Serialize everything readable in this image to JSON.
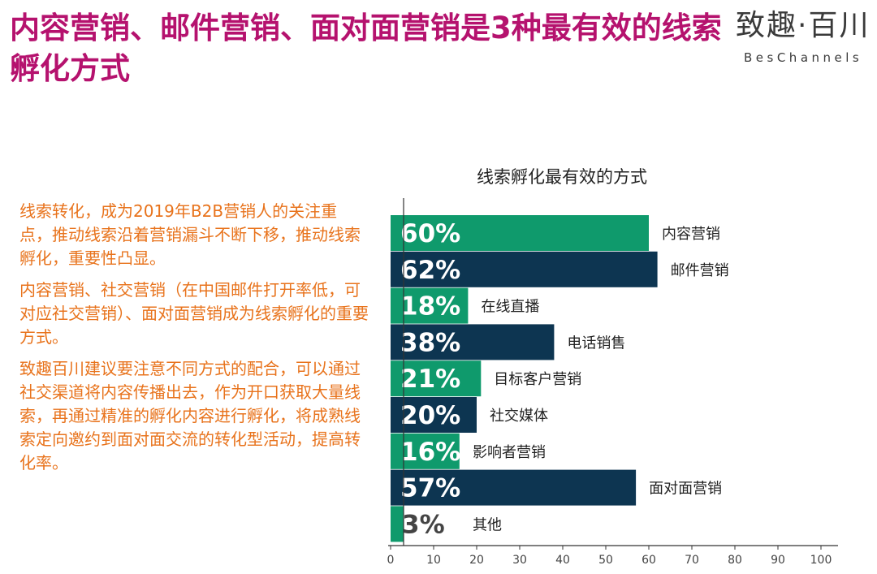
{
  "header": {
    "title": "内容营销、邮件营销、面对面营销是3种最有效的线索孵化方式",
    "logo_cn": "致趣·百川",
    "logo_en": "BesChannels"
  },
  "left_text": {
    "paragraphs": [
      "线索转化，成为2019年B2B营销人的关注重点，推动线索沿着营销漏斗不断下移，推动线索孵化，重要性凸显。",
      "内容营销、社交营销（在中国邮件打开率低，可对应社交营销）、面对面营销成为线索孵化的重要方式。",
      "致趣百川建议要注意不同方式的配合，可以通过社交渠道将内容传播出去，作为开口获取大量线索，再通过精准的孵化内容进行孵化，将成熟线索定向邀约到面对面交流的转化型活动，提高转化率。"
    ]
  },
  "chart_data": {
    "type": "bar",
    "orientation": "horizontal",
    "title": "线索孵化最有效的方式",
    "categories": [
      "内容营销",
      "邮件营销",
      "在线直播",
      "电话销售",
      "目标客户营销",
      "社交媒体",
      "影响者营销",
      "面对面营销",
      "其他"
    ],
    "values": [
      60,
      62,
      18,
      38,
      21,
      20,
      16,
      57,
      3
    ],
    "value_labels": [
      "60%",
      "62%",
      "18%",
      "38%",
      "21%",
      "20%",
      "16%",
      "57%",
      "3%"
    ],
    "bar_colors": [
      "#0f9a6c",
      "#0d3551",
      "#0f9a6c",
      "#0d3551",
      "#0f9a6c",
      "#0d3551",
      "#0f9a6c",
      "#0d3551",
      "#0f9a6c"
    ],
    "xlim": [
      0,
      100
    ],
    "xticks": [
      0,
      10,
      20,
      30,
      40,
      50,
      60,
      70,
      80,
      90,
      100
    ],
    "grid": false,
    "xlabel": "",
    "ylabel": ""
  }
}
